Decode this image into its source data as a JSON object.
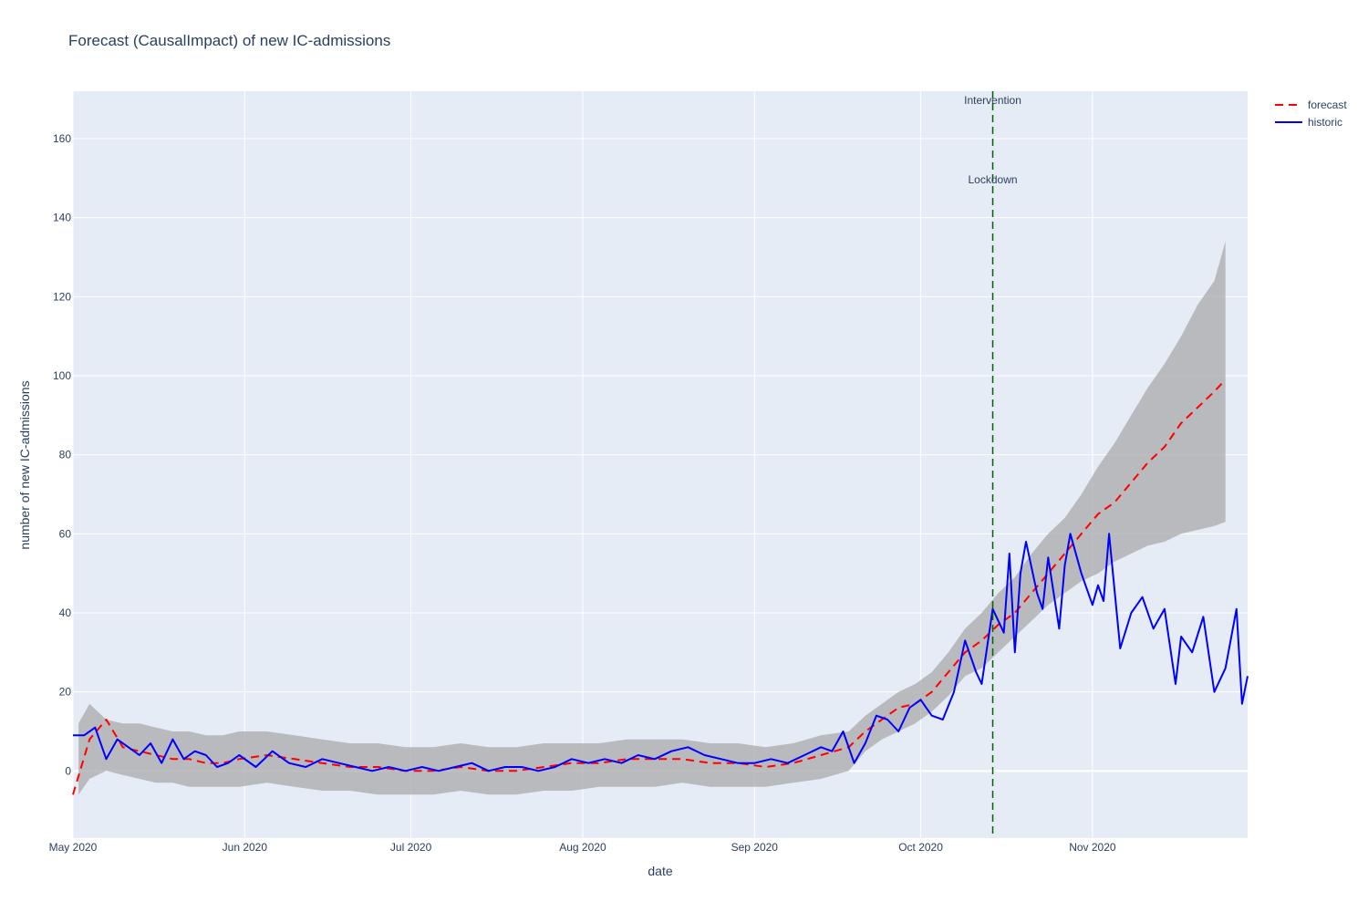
{
  "chart_data": {
    "type": "line",
    "title": "Forecast (CausalImpact) of new IC-admissions",
    "xlabel": "date",
    "ylabel": "number of new IC-admissions",
    "x_range": [
      "2020-05-01",
      "2020-11-29"
    ],
    "ylim": [
      -17,
      172
    ],
    "x_ticks": [
      {
        "date": "2020-05-01",
        "label": "May 2020"
      },
      {
        "date": "2020-06-01",
        "label": "Jun 2020"
      },
      {
        "date": "2020-07-01",
        "label": "Jul 2020"
      },
      {
        "date": "2020-08-01",
        "label": "Aug 2020"
      },
      {
        "date": "2020-09-01",
        "label": "Sep 2020"
      },
      {
        "date": "2020-10-01",
        "label": "Oct 2020"
      },
      {
        "date": "2020-11-01",
        "label": "Nov 2020"
      }
    ],
    "y_ticks": [
      0,
      20,
      40,
      60,
      80,
      100,
      120,
      140,
      160
    ],
    "grid": true,
    "legend_position": "top-right",
    "colors": {
      "plot_bg": "#e5ecf6",
      "grid": "#ffffff",
      "band": "#a9a9a9",
      "forecast": "#ff0000",
      "historic": "#0000ff",
      "intervention": "#006400"
    },
    "annotations": [
      {
        "text": "Intervention"
      },
      {
        "text": "Lockdown"
      }
    ],
    "intervention_date": "2020-10-14",
    "series": [
      {
        "name": "forecast",
        "style": "dashed",
        "x": [
          "2020-05-01",
          "2020-05-04",
          "2020-05-07",
          "2020-05-10",
          "2020-05-13",
          "2020-05-16",
          "2020-05-19",
          "2020-05-22",
          "2020-05-25",
          "2020-05-28",
          "2020-05-31",
          "2020-06-05",
          "2020-06-10",
          "2020-06-15",
          "2020-06-20",
          "2020-06-25",
          "2020-06-30",
          "2020-07-05",
          "2020-07-10",
          "2020-07-15",
          "2020-07-20",
          "2020-07-25",
          "2020-07-30",
          "2020-08-04",
          "2020-08-09",
          "2020-08-14",
          "2020-08-19",
          "2020-08-24",
          "2020-08-29",
          "2020-09-03",
          "2020-09-08",
          "2020-09-13",
          "2020-09-18",
          "2020-09-21",
          "2020-09-24",
          "2020-09-27",
          "2020-09-30",
          "2020-10-03",
          "2020-10-06",
          "2020-10-09",
          "2020-10-12",
          "2020-10-15",
          "2020-10-18",
          "2020-10-21",
          "2020-10-24",
          "2020-10-27",
          "2020-10-30",
          "2020-11-02",
          "2020-11-05",
          "2020-11-08",
          "2020-11-11",
          "2020-11-14",
          "2020-11-17",
          "2020-11-20",
          "2020-11-23",
          "2020-11-25"
        ],
        "y": [
          -6,
          8,
          13,
          6,
          5,
          4,
          3,
          3,
          2,
          2,
          3,
          4,
          3,
          2,
          1,
          1,
          0,
          0,
          1,
          0,
          0,
          1,
          2,
          2,
          3,
          3,
          3,
          2,
          2,
          1,
          2,
          4,
          6,
          10,
          13,
          16,
          17,
          20,
          25,
          30,
          33,
          37,
          40,
          45,
          50,
          55,
          60,
          65,
          68,
          73,
          78,
          82,
          88,
          92,
          96,
          99
        ]
      },
      {
        "name": "historic",
        "style": "solid",
        "x": [
          "2020-05-01",
          "2020-05-03",
          "2020-05-05",
          "2020-05-07",
          "2020-05-09",
          "2020-05-11",
          "2020-05-13",
          "2020-05-15",
          "2020-05-17",
          "2020-05-19",
          "2020-05-21",
          "2020-05-23",
          "2020-05-25",
          "2020-05-27",
          "2020-05-29",
          "2020-05-31",
          "2020-06-03",
          "2020-06-06",
          "2020-06-09",
          "2020-06-12",
          "2020-06-15",
          "2020-06-18",
          "2020-06-21",
          "2020-06-24",
          "2020-06-27",
          "2020-06-30",
          "2020-07-03",
          "2020-07-06",
          "2020-07-09",
          "2020-07-12",
          "2020-07-15",
          "2020-07-18",
          "2020-07-21",
          "2020-07-24",
          "2020-07-27",
          "2020-07-30",
          "2020-08-02",
          "2020-08-05",
          "2020-08-08",
          "2020-08-11",
          "2020-08-14",
          "2020-08-17",
          "2020-08-20",
          "2020-08-23",
          "2020-08-26",
          "2020-08-29",
          "2020-09-01",
          "2020-09-04",
          "2020-09-07",
          "2020-09-10",
          "2020-09-13",
          "2020-09-15",
          "2020-09-17",
          "2020-09-19",
          "2020-09-21",
          "2020-09-23",
          "2020-09-25",
          "2020-09-27",
          "2020-09-29",
          "2020-10-01",
          "2020-10-03",
          "2020-10-05",
          "2020-10-07",
          "2020-10-09",
          "2020-10-11",
          "2020-10-12",
          "2020-10-14",
          "2020-10-16",
          "2020-10-17",
          "2020-10-18",
          "2020-10-19",
          "2020-10-20",
          "2020-10-22",
          "2020-10-23",
          "2020-10-24",
          "2020-10-26",
          "2020-10-27",
          "2020-10-28",
          "2020-10-30",
          "2020-11-01",
          "2020-11-02",
          "2020-11-03",
          "2020-11-04",
          "2020-11-06",
          "2020-11-08",
          "2020-11-10",
          "2020-11-12",
          "2020-11-14",
          "2020-11-16",
          "2020-11-17",
          "2020-11-19",
          "2020-11-21",
          "2020-11-23",
          "2020-11-25",
          "2020-11-27",
          "2020-11-28",
          "2020-11-29"
        ],
        "y": [
          9,
          9,
          11,
          3,
          8,
          6,
          4,
          7,
          2,
          8,
          3,
          5,
          4,
          1,
          2,
          4,
          1,
          5,
          2,
          1,
          3,
          2,
          1,
          0,
          1,
          0,
          1,
          0,
          1,
          2,
          0,
          1,
          1,
          0,
          1,
          3,
          2,
          3,
          2,
          4,
          3,
          5,
          6,
          4,
          3,
          2,
          2,
          3,
          2,
          4,
          6,
          5,
          10,
          2,
          7,
          14,
          13,
          10,
          16,
          18,
          14,
          13,
          20,
          33,
          25,
          22,
          41,
          35,
          55,
          30,
          50,
          58,
          45,
          41,
          54,
          36,
          52,
          60,
          50,
          42,
          47,
          43,
          60,
          31,
          40,
          44,
          36,
          41,
          22,
          34,
          30,
          39,
          20,
          26,
          41,
          17,
          24
        ]
      }
    ],
    "confidence_band": {
      "x": [
        "2020-05-02",
        "2020-05-04",
        "2020-05-07",
        "2020-05-10",
        "2020-05-13",
        "2020-05-16",
        "2020-05-19",
        "2020-05-22",
        "2020-05-25",
        "2020-05-28",
        "2020-05-31",
        "2020-06-05",
        "2020-06-10",
        "2020-06-15",
        "2020-06-20",
        "2020-06-25",
        "2020-06-30",
        "2020-07-05",
        "2020-07-10",
        "2020-07-15",
        "2020-07-20",
        "2020-07-25",
        "2020-07-30",
        "2020-08-04",
        "2020-08-09",
        "2020-08-14",
        "2020-08-19",
        "2020-08-24",
        "2020-08-29",
        "2020-09-03",
        "2020-09-08",
        "2020-09-13",
        "2020-09-18",
        "2020-09-21",
        "2020-09-24",
        "2020-09-27",
        "2020-09-30",
        "2020-10-03",
        "2020-10-06",
        "2020-10-09",
        "2020-10-12",
        "2020-10-15",
        "2020-10-18",
        "2020-10-21",
        "2020-10-24",
        "2020-10-27",
        "2020-10-30",
        "2020-11-02",
        "2020-11-05",
        "2020-11-08",
        "2020-11-11",
        "2020-11-14",
        "2020-11-17",
        "2020-11-20",
        "2020-11-23",
        "2020-11-25"
      ],
      "upper": [
        12,
        17,
        13,
        12,
        12,
        11,
        10,
        10,
        9,
        9,
        10,
        10,
        9,
        8,
        7,
        7,
        6,
        6,
        7,
        6,
        6,
        7,
        7,
        7,
        8,
        8,
        8,
        7,
        7,
        6,
        7,
        9,
        10,
        14,
        17,
        20,
        22,
        25,
        30,
        36,
        40,
        45,
        49,
        55,
        60,
        64,
        70,
        77,
        83,
        90,
        97,
        103,
        110,
        118,
        124,
        134
      ],
      "lower": [
        -6,
        -2,
        0,
        -1,
        -2,
        -3,
        -3,
        -4,
        -4,
        -4,
        -4,
        -3,
        -4,
        -5,
        -5,
        -6,
        -6,
        -6,
        -5,
        -6,
        -6,
        -5,
        -5,
        -4,
        -4,
        -4,
        -3,
        -4,
        -4,
        -4,
        -3,
        -2,
        0,
        5,
        8,
        10,
        12,
        15,
        19,
        24,
        26,
        30,
        34,
        38,
        42,
        45,
        48,
        50,
        53,
        55,
        57,
        58,
        60,
        61,
        62,
        63
      ]
    }
  }
}
